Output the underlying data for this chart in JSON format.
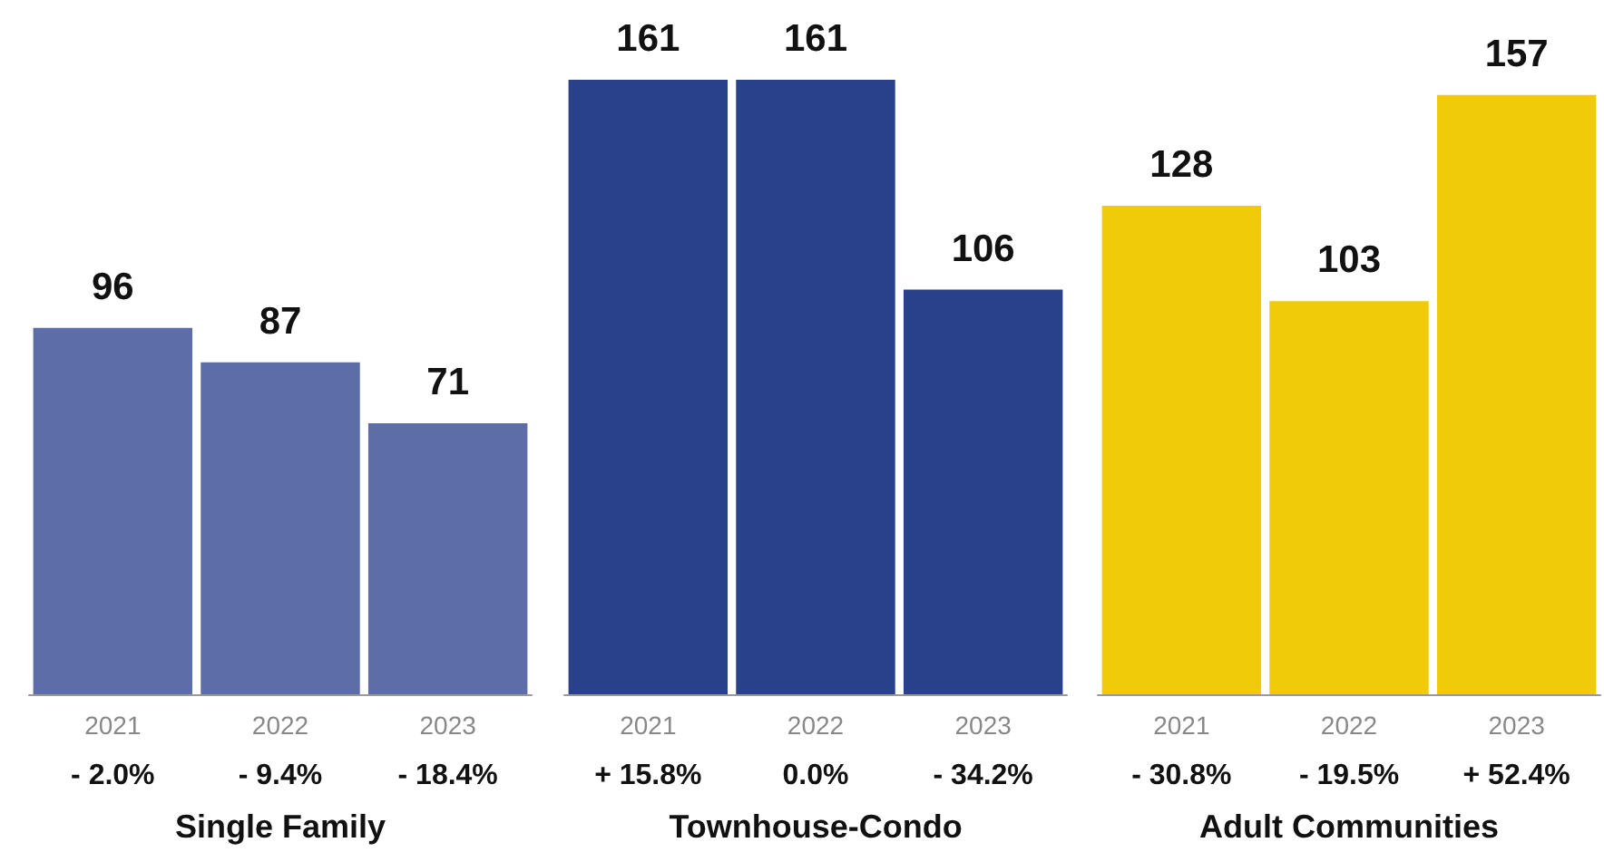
{
  "chart_data": [
    {
      "type": "bar",
      "xlabel": "Single Family",
      "categories": [
        "2021",
        "2022",
        "2023"
      ],
      "values": [
        96,
        87,
        71
      ],
      "color": "#5c6da8",
      "data_labels": true,
      "annotations": [
        "- 2.0%",
        "- 9.4%",
        "- 18.4%"
      ]
    },
    {
      "type": "bar",
      "xlabel": "Townhouse-Condo",
      "categories": [
        "2021",
        "2022",
        "2023"
      ],
      "values": [
        161,
        161,
        106
      ],
      "color": "#28418a",
      "data_labels": true,
      "annotations": [
        "+ 15.8%",
        "0.0%",
        "- 34.2%"
      ]
    },
    {
      "type": "bar",
      "xlabel": "Adult Communities",
      "categories": [
        "2021",
        "2022",
        "2023"
      ],
      "values": [
        128,
        103,
        157
      ],
      "color": "#f0cb0a",
      "data_labels": true,
      "annotations": [
        "- 30.8%",
        "- 19.5%",
        "+ 52.4%"
      ]
    }
  ]
}
